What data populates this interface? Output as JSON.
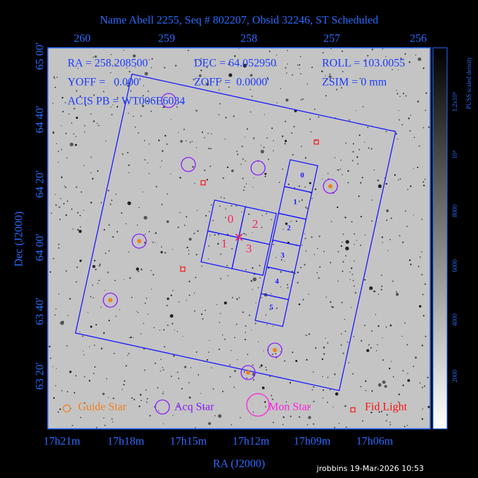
{
  "header": {
    "title": "Name Abell 2255, Seq # 802207, Obsid 32246, ST Scheduled"
  },
  "info": {
    "ra": "RA = 258.208500",
    "dec": "DEC = 64.052950",
    "roll": "ROLL = 103.0055",
    "yoff": "YOFF =   0.000'",
    "zoff": "ZOFF =  0.0000'",
    "zsim": "ZSIM = 0 mm",
    "acis_pb": "ACIS PB = WT006E6034"
  },
  "axes": {
    "top_ticks": [
      "260",
      "259",
      "258",
      "257",
      "256"
    ],
    "left_ticks": [
      "65 00'",
      "64 40'",
      "64 20'",
      "64 00'",
      "63 40'",
      "63 20'"
    ],
    "bottom_ticks": [
      "17h21m",
      "17h18m",
      "17h15m",
      "17h12m",
      "17h09m",
      "17h06m"
    ],
    "x_label": "RA (J2000)",
    "y_label": "Dec (J2000)"
  },
  "colorbar": {
    "label": "PUSS scaled density",
    "ticks": [
      "1.2x10⁴",
      "10⁴",
      "8000",
      "6000",
      "4000",
      "2000"
    ]
  },
  "chips": {
    "acis_i": [
      "0",
      "2",
      "1",
      "3"
    ],
    "acis_s": [
      "0",
      "1",
      "2",
      "3",
      "4",
      "5"
    ]
  },
  "legend": [
    "Guide Star",
    "Acq Star",
    "Mon Star",
    "Fid Light"
  ],
  "footer": "jrobbins 19-Mar-2026 10:53"
}
